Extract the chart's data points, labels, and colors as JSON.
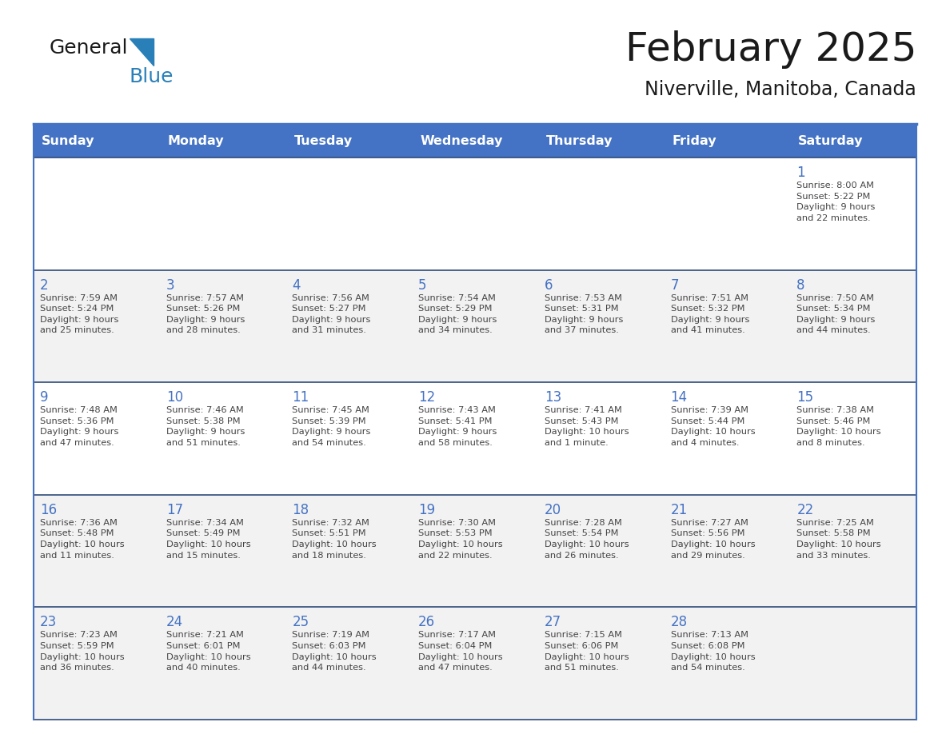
{
  "title": "February 2025",
  "subtitle": "Niverville, Manitoba, Canada",
  "header_bg": "#4472C4",
  "header_text_color": "#FFFFFF",
  "cell_bg_white": "#FFFFFF",
  "cell_bg_gray": "#F2F2F2",
  "row_border_color": "#2E4A7A",
  "outer_border_color": "#4472C4",
  "day_headers": [
    "Sunday",
    "Monday",
    "Tuesday",
    "Wednesday",
    "Thursday",
    "Friday",
    "Saturday"
  ],
  "title_color": "#1a1a1a",
  "subtitle_color": "#1a1a1a",
  "day_num_color": "#4472C4",
  "cell_text_color": "#444444",
  "logo_general_color": "#1a1a1a",
  "logo_blue_color": "#2980b9",
  "logo_triangle_color": "#2980b9",
  "weeks": [
    [
      {
        "day": null,
        "info": null
      },
      {
        "day": null,
        "info": null
      },
      {
        "day": null,
        "info": null
      },
      {
        "day": null,
        "info": null
      },
      {
        "day": null,
        "info": null
      },
      {
        "day": null,
        "info": null
      },
      {
        "day": 1,
        "info": "Sunrise: 8:00 AM\nSunset: 5:22 PM\nDaylight: 9 hours\nand 22 minutes."
      }
    ],
    [
      {
        "day": 2,
        "info": "Sunrise: 7:59 AM\nSunset: 5:24 PM\nDaylight: 9 hours\nand 25 minutes."
      },
      {
        "day": 3,
        "info": "Sunrise: 7:57 AM\nSunset: 5:26 PM\nDaylight: 9 hours\nand 28 minutes."
      },
      {
        "day": 4,
        "info": "Sunrise: 7:56 AM\nSunset: 5:27 PM\nDaylight: 9 hours\nand 31 minutes."
      },
      {
        "day": 5,
        "info": "Sunrise: 7:54 AM\nSunset: 5:29 PM\nDaylight: 9 hours\nand 34 minutes."
      },
      {
        "day": 6,
        "info": "Sunrise: 7:53 AM\nSunset: 5:31 PM\nDaylight: 9 hours\nand 37 minutes."
      },
      {
        "day": 7,
        "info": "Sunrise: 7:51 AM\nSunset: 5:32 PM\nDaylight: 9 hours\nand 41 minutes."
      },
      {
        "day": 8,
        "info": "Sunrise: 7:50 AM\nSunset: 5:34 PM\nDaylight: 9 hours\nand 44 minutes."
      }
    ],
    [
      {
        "day": 9,
        "info": "Sunrise: 7:48 AM\nSunset: 5:36 PM\nDaylight: 9 hours\nand 47 minutes."
      },
      {
        "day": 10,
        "info": "Sunrise: 7:46 AM\nSunset: 5:38 PM\nDaylight: 9 hours\nand 51 minutes."
      },
      {
        "day": 11,
        "info": "Sunrise: 7:45 AM\nSunset: 5:39 PM\nDaylight: 9 hours\nand 54 minutes."
      },
      {
        "day": 12,
        "info": "Sunrise: 7:43 AM\nSunset: 5:41 PM\nDaylight: 9 hours\nand 58 minutes."
      },
      {
        "day": 13,
        "info": "Sunrise: 7:41 AM\nSunset: 5:43 PM\nDaylight: 10 hours\nand 1 minute."
      },
      {
        "day": 14,
        "info": "Sunrise: 7:39 AM\nSunset: 5:44 PM\nDaylight: 10 hours\nand 4 minutes."
      },
      {
        "day": 15,
        "info": "Sunrise: 7:38 AM\nSunset: 5:46 PM\nDaylight: 10 hours\nand 8 minutes."
      }
    ],
    [
      {
        "day": 16,
        "info": "Sunrise: 7:36 AM\nSunset: 5:48 PM\nDaylight: 10 hours\nand 11 minutes."
      },
      {
        "day": 17,
        "info": "Sunrise: 7:34 AM\nSunset: 5:49 PM\nDaylight: 10 hours\nand 15 minutes."
      },
      {
        "day": 18,
        "info": "Sunrise: 7:32 AM\nSunset: 5:51 PM\nDaylight: 10 hours\nand 18 minutes."
      },
      {
        "day": 19,
        "info": "Sunrise: 7:30 AM\nSunset: 5:53 PM\nDaylight: 10 hours\nand 22 minutes."
      },
      {
        "day": 20,
        "info": "Sunrise: 7:28 AM\nSunset: 5:54 PM\nDaylight: 10 hours\nand 26 minutes."
      },
      {
        "day": 21,
        "info": "Sunrise: 7:27 AM\nSunset: 5:56 PM\nDaylight: 10 hours\nand 29 minutes."
      },
      {
        "day": 22,
        "info": "Sunrise: 7:25 AM\nSunset: 5:58 PM\nDaylight: 10 hours\nand 33 minutes."
      }
    ],
    [
      {
        "day": 23,
        "info": "Sunrise: 7:23 AM\nSunset: 5:59 PM\nDaylight: 10 hours\nand 36 minutes."
      },
      {
        "day": 24,
        "info": "Sunrise: 7:21 AM\nSunset: 6:01 PM\nDaylight: 10 hours\nand 40 minutes."
      },
      {
        "day": 25,
        "info": "Sunrise: 7:19 AM\nSunset: 6:03 PM\nDaylight: 10 hours\nand 44 minutes."
      },
      {
        "day": 26,
        "info": "Sunrise: 7:17 AM\nSunset: 6:04 PM\nDaylight: 10 hours\nand 47 minutes."
      },
      {
        "day": 27,
        "info": "Sunrise: 7:15 AM\nSunset: 6:06 PM\nDaylight: 10 hours\nand 51 minutes."
      },
      {
        "day": 28,
        "info": "Sunrise: 7:13 AM\nSunset: 6:08 PM\nDaylight: 10 hours\nand 54 minutes."
      },
      {
        "day": null,
        "info": null
      }
    ]
  ]
}
